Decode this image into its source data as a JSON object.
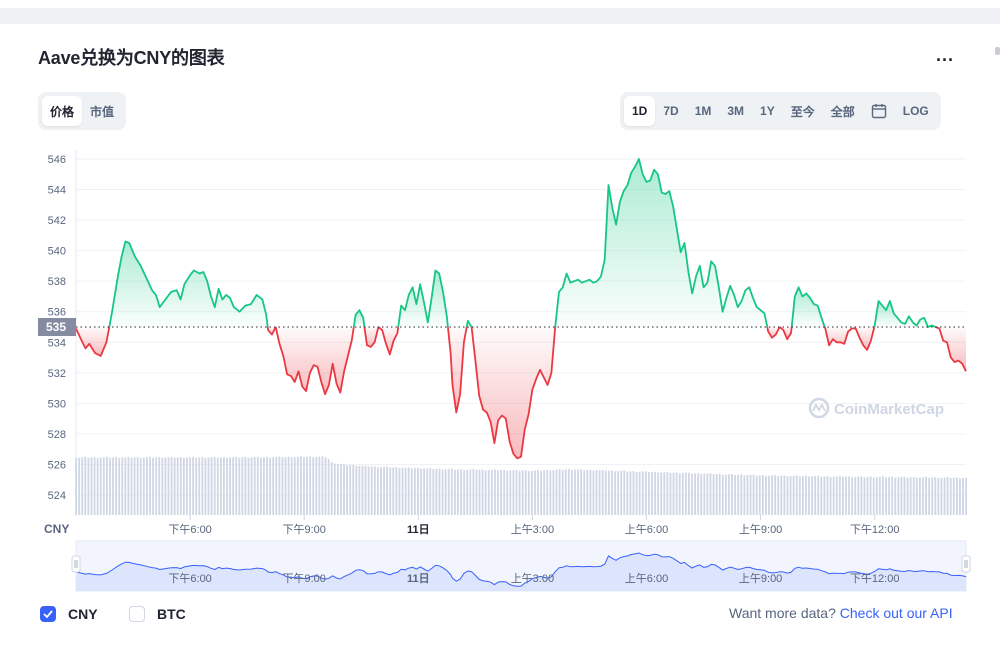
{
  "title": "Aave兑换为CNY的图表",
  "more_label": "...",
  "view_tabs": [
    {
      "label": "价格",
      "active": true
    },
    {
      "label": "市值",
      "active": false
    }
  ],
  "range_tabs": [
    {
      "label": "1D",
      "active": true
    },
    {
      "label": "7D",
      "active": false
    },
    {
      "label": "1M",
      "active": false
    },
    {
      "label": "3M",
      "active": false
    },
    {
      "label": "1Y",
      "active": false
    },
    {
      "label": "至今",
      "active": false
    },
    {
      "label": "全部",
      "active": false
    }
  ],
  "log_label": "LOG",
  "calendar_icon": "calendar-icon",
  "watermark": "CoinMarketCap",
  "currency_axis_label": "CNY",
  "current_price_label": "535",
  "checkboxes": [
    {
      "label": "CNY",
      "checked": true
    },
    {
      "label": "BTC",
      "checked": false
    }
  ],
  "footer": {
    "text": "Want more data? ",
    "link": "Check out our API"
  },
  "colors": {
    "up": "#16c784",
    "down": "#ea3943",
    "accent": "#3861fb",
    "volume": "#cfd6e4",
    "navigator_fill": "#dde5fc",
    "navigator_line": "#3861fb"
  },
  "chart_data": {
    "type": "line",
    "reference_price": 535,
    "ylim": [
      523,
      546.6
    ],
    "y_ticks": [
      546,
      544,
      542,
      540,
      538,
      536,
      534,
      532,
      530,
      528,
      526,
      524
    ],
    "x_tick_labels": [
      "下午6:00",
      "下午9:00",
      "11日",
      "上午3:00",
      "上午6:00",
      "上午9:00",
      "下午12:00"
    ],
    "x_tick_hours": [
      3,
      6,
      9,
      12,
      15,
      18,
      21
    ],
    "x_range_hours": [
      0,
      23.4
    ],
    "price": [
      [
        0.0,
        534.9
      ],
      [
        0.15,
        534.1
      ],
      [
        0.25,
        533.6
      ],
      [
        0.35,
        533.9
      ],
      [
        0.5,
        533.3
      ],
      [
        0.65,
        533.1
      ],
      [
        0.8,
        534.0
      ],
      [
        0.95,
        536.0
      ],
      [
        1.1,
        538.3
      ],
      [
        1.2,
        539.6
      ],
      [
        1.3,
        540.6
      ],
      [
        1.4,
        540.5
      ],
      [
        1.55,
        539.6
      ],
      [
        1.7,
        539.0
      ],
      [
        1.85,
        538.2
      ],
      [
        2.0,
        537.4
      ],
      [
        2.1,
        537.1
      ],
      [
        2.2,
        536.3
      ],
      [
        2.35,
        536.8
      ],
      [
        2.5,
        537.3
      ],
      [
        2.65,
        537.4
      ],
      [
        2.75,
        536.8
      ],
      [
        2.85,
        537.8
      ],
      [
        3.0,
        538.4
      ],
      [
        3.1,
        538.7
      ],
      [
        3.25,
        538.5
      ],
      [
        3.35,
        538.6
      ],
      [
        3.45,
        538.0
      ],
      [
        3.55,
        537.0
      ],
      [
        3.65,
        536.3
      ],
      [
        3.75,
        537.5
      ],
      [
        3.85,
        536.8
      ],
      [
        3.95,
        537.1
      ],
      [
        4.05,
        536.9
      ],
      [
        4.15,
        536.3
      ],
      [
        4.3,
        536.0
      ],
      [
        4.45,
        536.4
      ],
      [
        4.6,
        536.5
      ],
      [
        4.75,
        537.1
      ],
      [
        4.9,
        536.8
      ],
      [
        5.0,
        535.8
      ],
      [
        5.05,
        534.8
      ],
      [
        5.15,
        534.5
      ],
      [
        5.25,
        535.0
      ],
      [
        5.35,
        533.9
      ],
      [
        5.45,
        533.1
      ],
      [
        5.55,
        531.9
      ],
      [
        5.65,
        531.8
      ],
      [
        5.75,
        531.4
      ],
      [
        5.85,
        532.1
      ],
      [
        5.95,
        531.1
      ],
      [
        6.05,
        530.8
      ],
      [
        6.15,
        532.0
      ],
      [
        6.25,
        532.5
      ],
      [
        6.35,
        532.4
      ],
      [
        6.45,
        531.4
      ],
      [
        6.55,
        530.6
      ],
      [
        6.65,
        531.2
      ],
      [
        6.75,
        532.6
      ],
      [
        6.85,
        531.3
      ],
      [
        6.95,
        530.7
      ],
      [
        7.05,
        532.1
      ],
      [
        7.15,
        533.1
      ],
      [
        7.25,
        534.1
      ],
      [
        7.35,
        535.8
      ],
      [
        7.45,
        536.1
      ],
      [
        7.55,
        535.6
      ],
      [
        7.65,
        533.8
      ],
      [
        7.75,
        533.7
      ],
      [
        7.85,
        534.0
      ],
      [
        7.95,
        535.0
      ],
      [
        8.05,
        534.8
      ],
      [
        8.15,
        533.9
      ],
      [
        8.25,
        533.2
      ],
      [
        8.35,
        534.1
      ],
      [
        8.45,
        534.6
      ],
      [
        8.55,
        536.4
      ],
      [
        8.65,
        536.1
      ],
      [
        8.75,
        537.1
      ],
      [
        8.85,
        537.6
      ],
      [
        8.95,
        536.5
      ],
      [
        9.05,
        537.8
      ],
      [
        9.15,
        536.6
      ],
      [
        9.25,
        535.3
      ],
      [
        9.35,
        536.9
      ],
      [
        9.45,
        538.7
      ],
      [
        9.55,
        538.5
      ],
      [
        9.65,
        537.3
      ],
      [
        9.75,
        535.7
      ],
      [
        9.85,
        533.3
      ],
      [
        9.9,
        531.2
      ],
      [
        10.0,
        529.4
      ],
      [
        10.1,
        530.6
      ],
      [
        10.2,
        534.0
      ],
      [
        10.3,
        535.4
      ],
      [
        10.4,
        535.0
      ],
      [
        10.5,
        532.8
      ],
      [
        10.6,
        530.5
      ],
      [
        10.7,
        529.6
      ],
      [
        10.8,
        529.4
      ],
      [
        10.9,
        528.8
      ],
      [
        11.0,
        527.4
      ],
      [
        11.1,
        528.9
      ],
      [
        11.2,
        529.2
      ],
      [
        11.3,
        529.0
      ],
      [
        11.4,
        527.5
      ],
      [
        11.5,
        526.7
      ],
      [
        11.6,
        526.4
      ],
      [
        11.7,
        526.5
      ],
      [
        11.8,
        528.3
      ],
      [
        11.9,
        529.3
      ],
      [
        12.0,
        530.9
      ],
      [
        12.1,
        531.6
      ],
      [
        12.2,
        532.2
      ],
      [
        12.3,
        531.7
      ],
      [
        12.4,
        531.2
      ],
      [
        12.5,
        532.0
      ],
      [
        12.6,
        535.0
      ],
      [
        12.7,
        537.3
      ],
      [
        12.8,
        537.6
      ],
      [
        12.9,
        538.5
      ],
      [
        13.0,
        537.9
      ],
      [
        13.1,
        538.0
      ],
      [
        13.2,
        538.1
      ],
      [
        13.3,
        537.9
      ],
      [
        13.4,
        538.0
      ],
      [
        13.5,
        538.1
      ],
      [
        13.6,
        537.9
      ],
      [
        13.7,
        538.0
      ],
      [
        13.8,
        538.3
      ],
      [
        13.9,
        539.4
      ],
      [
        14.0,
        544.3
      ],
      [
        14.1,
        542.8
      ],
      [
        14.2,
        541.7
      ],
      [
        14.3,
        543.2
      ],
      [
        14.4,
        543.9
      ],
      [
        14.5,
        544.3
      ],
      [
        14.6,
        545.1
      ],
      [
        14.7,
        545.5
      ],
      [
        14.8,
        546.0
      ],
      [
        14.9,
        545.0
      ],
      [
        15.0,
        544.5
      ],
      [
        15.1,
        544.6
      ],
      [
        15.2,
        545.3
      ],
      [
        15.3,
        545.0
      ],
      [
        15.4,
        543.8
      ],
      [
        15.5,
        543.7
      ],
      [
        15.6,
        543.9
      ],
      [
        15.7,
        542.9
      ],
      [
        15.8,
        541.4
      ],
      [
        15.9,
        539.9
      ],
      [
        16.0,
        540.5
      ],
      [
        16.1,
        538.6
      ],
      [
        16.2,
        537.2
      ],
      [
        16.3,
        538.3
      ],
      [
        16.4,
        539.0
      ],
      [
        16.5,
        537.6
      ],
      [
        16.6,
        537.9
      ],
      [
        16.7,
        539.3
      ],
      [
        16.8,
        539.0
      ],
      [
        16.9,
        537.6
      ],
      [
        17.0,
        536.0
      ],
      [
        17.1,
        536.9
      ],
      [
        17.2,
        537.7
      ],
      [
        17.3,
        537.1
      ],
      [
        17.4,
        536.3
      ],
      [
        17.5,
        536.7
      ],
      [
        17.6,
        537.4
      ],
      [
        17.7,
        537.6
      ],
      [
        17.8,
        536.9
      ],
      [
        17.9,
        536.3
      ],
      [
        18.0,
        536.1
      ],
      [
        18.1,
        535.9
      ],
      [
        18.2,
        534.7
      ],
      [
        18.3,
        534.3
      ],
      [
        18.4,
        534.5
      ],
      [
        18.5,
        535.0
      ],
      [
        18.6,
        534.8
      ],
      [
        18.7,
        534.2
      ],
      [
        18.8,
        534.6
      ],
      [
        18.9,
        537.0
      ],
      [
        19.0,
        537.6
      ],
      [
        19.1,
        537.0
      ],
      [
        19.2,
        537.2
      ],
      [
        19.3,
        536.9
      ],
      [
        19.4,
        536.5
      ],
      [
        19.5,
        536.4
      ],
      [
        19.6,
        535.6
      ],
      [
        19.7,
        534.9
      ],
      [
        19.8,
        533.8
      ],
      [
        19.9,
        534.2
      ],
      [
        20.0,
        534.0
      ],
      [
        20.1,
        534.0
      ],
      [
        20.2,
        533.9
      ],
      [
        20.3,
        534.7
      ],
      [
        20.4,
        534.9
      ],
      [
        20.5,
        534.9
      ],
      [
        20.6,
        534.3
      ],
      [
        20.7,
        533.8
      ],
      [
        20.8,
        533.5
      ],
      [
        20.9,
        534.1
      ],
      [
        21.0,
        535.1
      ],
      [
        21.1,
        536.7
      ],
      [
        21.2,
        536.4
      ],
      [
        21.3,
        536.1
      ],
      [
        21.4,
        536.7
      ],
      [
        21.5,
        535.9
      ],
      [
        21.6,
        535.6
      ],
      [
        21.7,
        535.3
      ],
      [
        21.8,
        535.2
      ],
      [
        21.9,
        535.7
      ],
      [
        22.0,
        535.3
      ],
      [
        22.1,
        535.1
      ],
      [
        22.2,
        535.5
      ],
      [
        22.3,
        535.6
      ],
      [
        22.4,
        535.0
      ],
      [
        22.5,
        535.1
      ],
      [
        22.6,
        535.0
      ],
      [
        22.7,
        534.9
      ],
      [
        22.8,
        534.1
      ],
      [
        22.9,
        534.0
      ],
      [
        23.0,
        533.0
      ],
      [
        23.1,
        532.7
      ],
      [
        23.2,
        532.8
      ],
      [
        23.3,
        532.6
      ],
      [
        23.4,
        532.1
      ]
    ],
    "volume_levels": [
      [
        0.0,
        0.96
      ],
      [
        4.0,
        0.96
      ],
      [
        6.6,
        0.97
      ],
      [
        6.7,
        0.88
      ],
      [
        7.0,
        0.84
      ],
      [
        8.0,
        0.8
      ],
      [
        10.0,
        0.76
      ],
      [
        12.0,
        0.74
      ],
      [
        13.0,
        0.76
      ],
      [
        14.0,
        0.74
      ],
      [
        16.0,
        0.7
      ],
      [
        18.0,
        0.66
      ],
      [
        20.0,
        0.64
      ],
      [
        23.4,
        0.62
      ]
    ]
  }
}
